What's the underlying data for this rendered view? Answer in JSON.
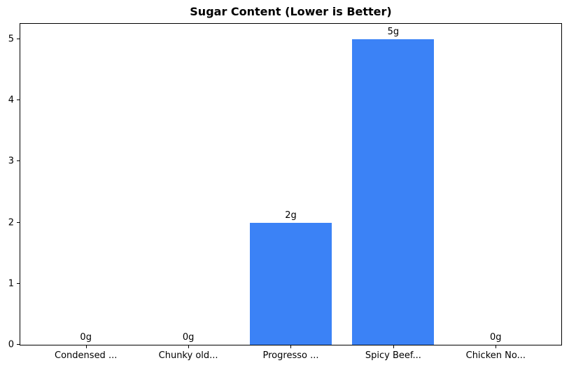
{
  "chart_data": {
    "type": "bar",
    "title": "Sugar Content (Lower is Better)",
    "categories": [
      "Condensed ...",
      "Chunky old...",
      "Progresso ...",
      "Spicy Beef...",
      "Chicken No..."
    ],
    "values": [
      0,
      0,
      2,
      5,
      0
    ],
    "bar_labels": [
      "0g",
      "0g",
      "2g",
      "5g",
      "0g"
    ],
    "yticks": [
      0,
      1,
      2,
      3,
      4,
      5
    ],
    "ylim": [
      0,
      5.25
    ],
    "xlabel": "",
    "ylabel": "",
    "grid": false,
    "legend_position": "none",
    "bar_color": "#3b82f6",
    "axis_color": "#000000",
    "background_color": "#ffffff"
  }
}
